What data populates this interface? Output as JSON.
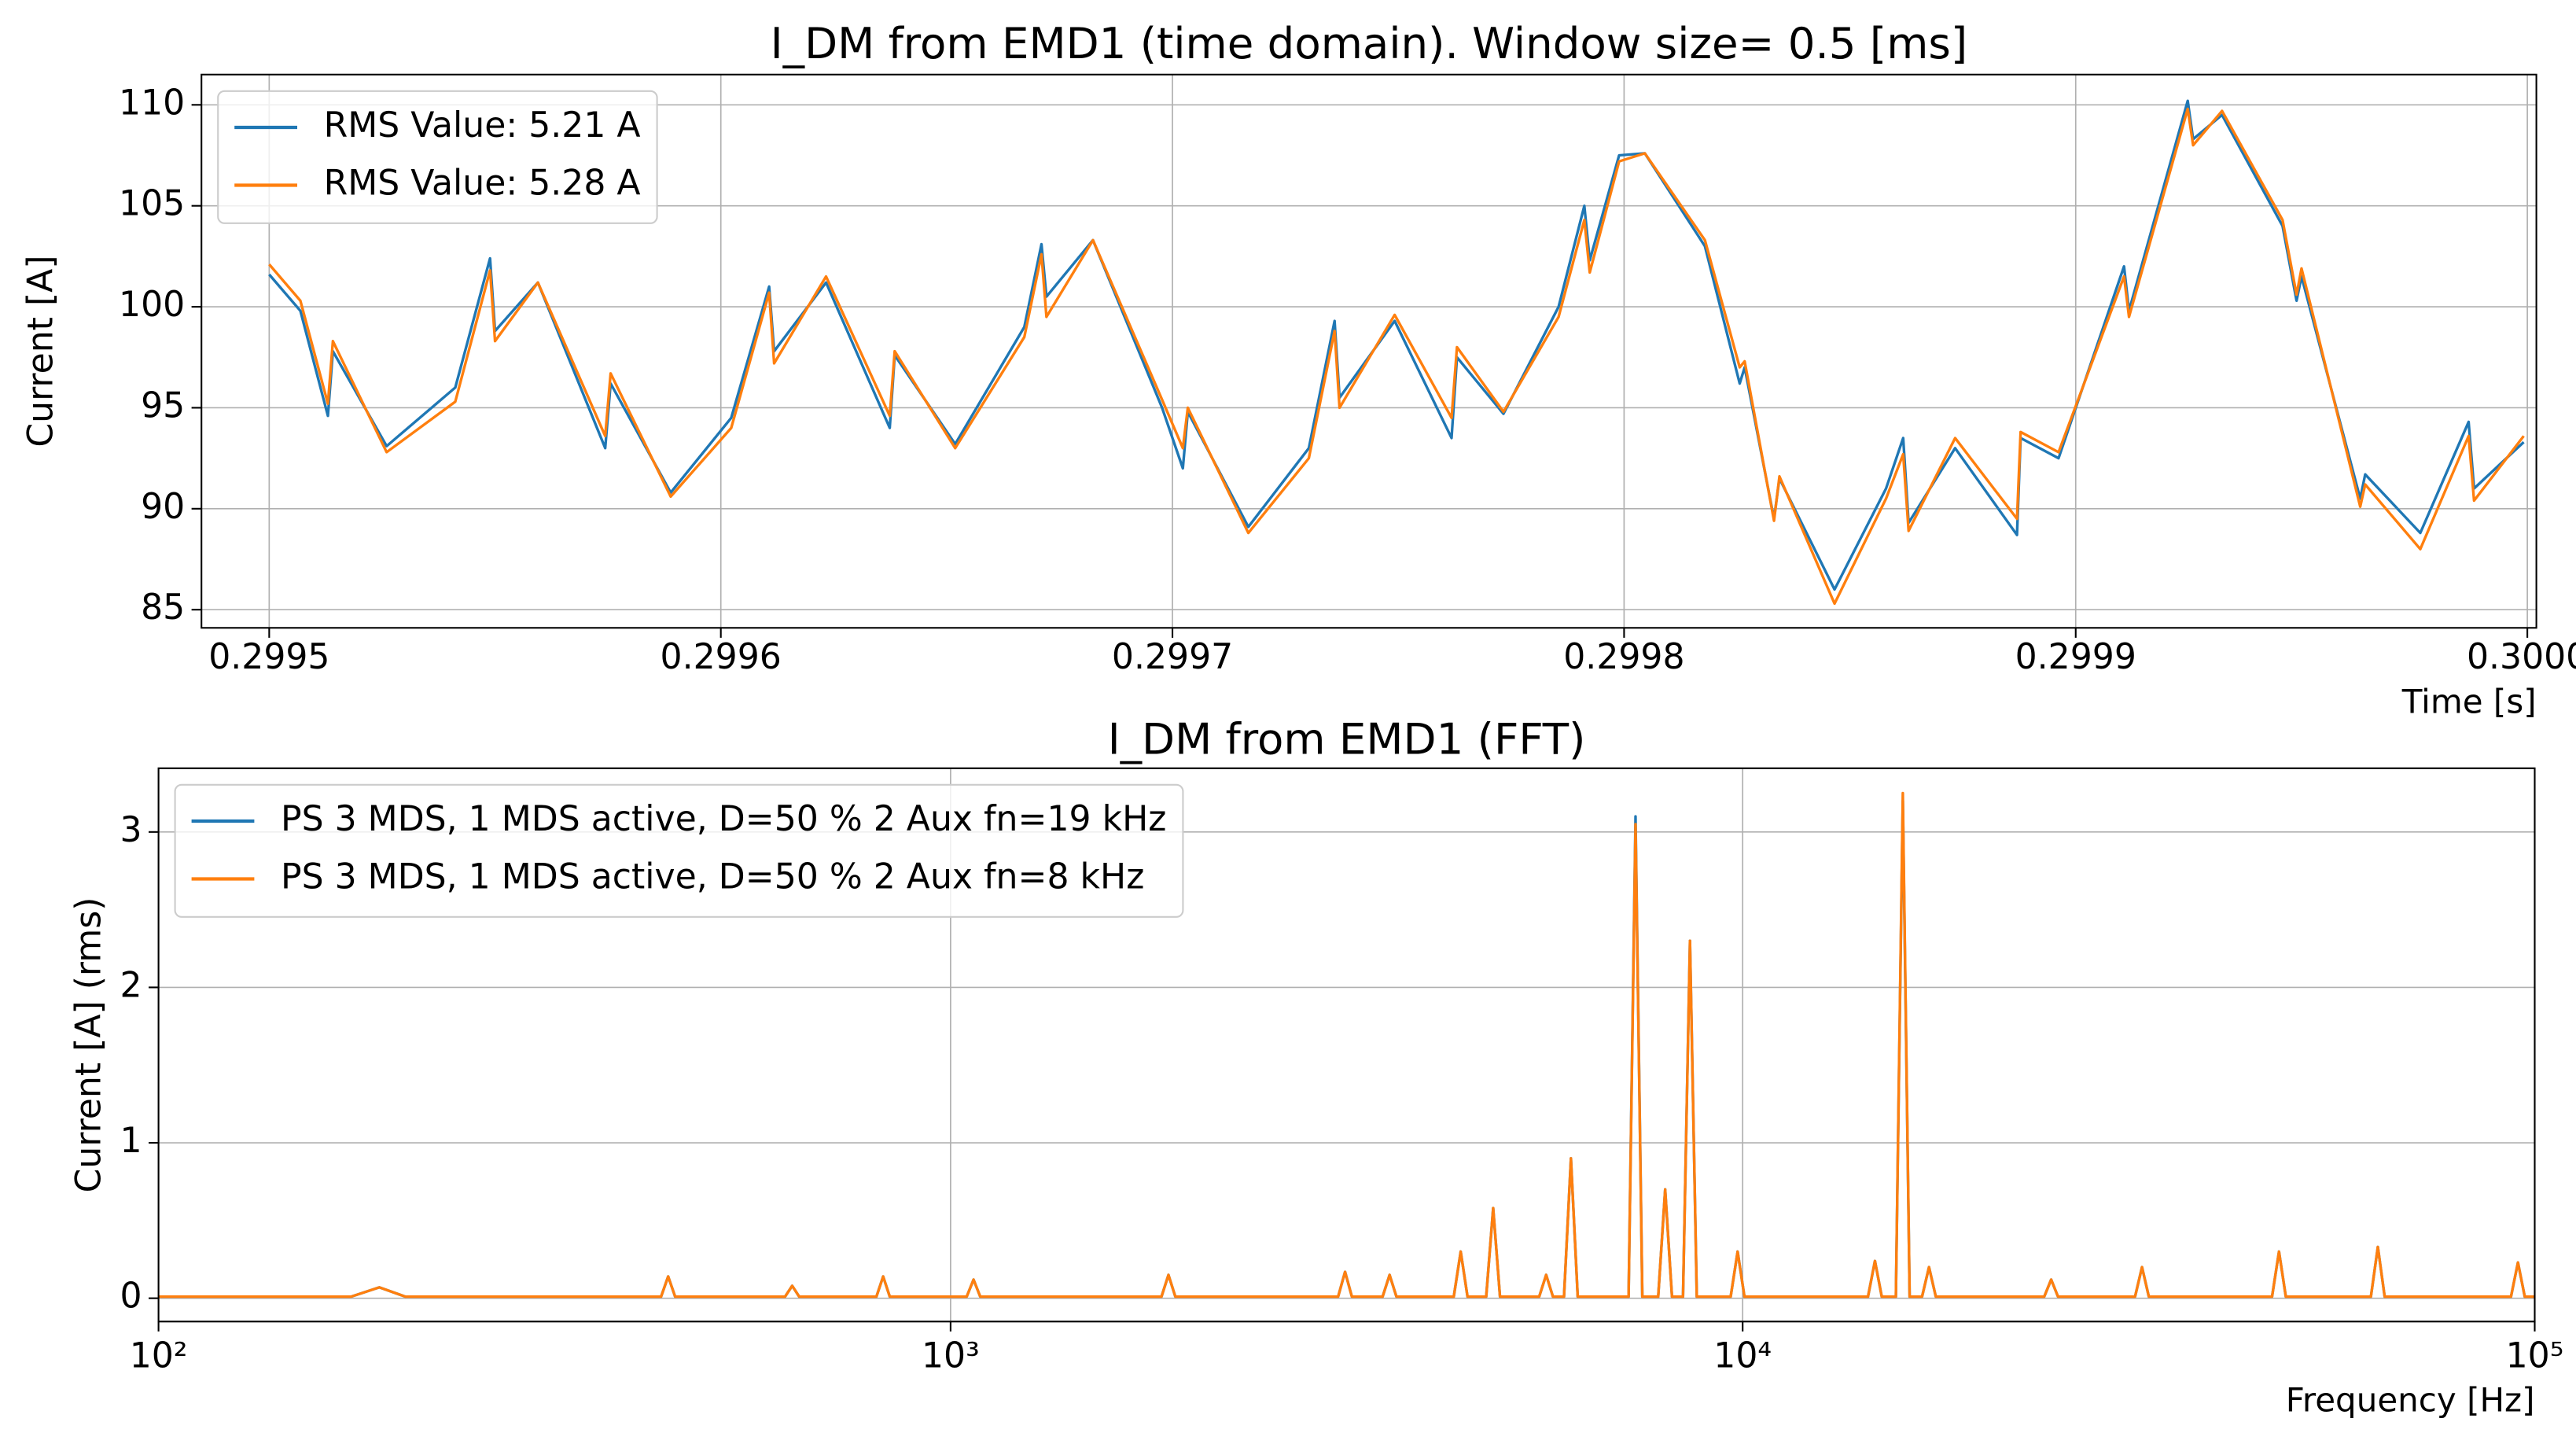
{
  "chart_data": [
    {
      "type": "line",
      "title": "I_DM from EMD1 (time domain). Window size= 0.5 [ms]",
      "xlabel": "Time [s]",
      "ylabel": "Current [A]",
      "grid": true,
      "legend": "upper left",
      "log_x": false,
      "x": [
        0.2995,
        0.2995069,
        0.299513,
        0.2995141,
        0.299526,
        0.2995412,
        0.2995489,
        0.29955,
        0.2995595,
        0.2995744,
        0.2995756,
        0.2995889,
        0.2996023,
        0.2996107,
        0.2996118,
        0.2996233,
        0.2996374,
        0.2996385,
        0.2996519,
        0.2996672,
        0.299671,
        0.2996721,
        0.2996824,
        0.2996977,
        0.2997023,
        0.2997034,
        0.2997168,
        0.2997302,
        0.2997359,
        0.299737,
        0.2997492,
        0.2997618,
        0.299763,
        0.2997733,
        0.2997855,
        0.2997912,
        0.2997924,
        0.2997989,
        0.2998046,
        0.2998179,
        0.2998256,
        0.2998267,
        0.2998332,
        0.2998344,
        0.2998466,
        0.299858,
        0.2998618,
        0.299863,
        0.2998733,
        0.299887,
        0.2998878,
        0.2998962,
        0.2999107,
        0.2999118,
        0.2999248,
        0.299926,
        0.2999324,
        0.2999458,
        0.2999489,
        0.29995,
        0.299963,
        0.2999641,
        0.2999763,
        0.299987,
        0.2999882,
        0.2999992
      ],
      "series": [
        {
          "name": "RMS Value: 5.21 A",
          "color": "#1f77b4",
          "values": [
            101.6,
            99.8,
            94.6,
            97.8,
            93.1,
            96,
            102.4,
            98.8,
            101.2,
            93,
            96.2,
            90.8,
            94.5,
            101,
            97.8,
            101.2,
            94,
            97.6,
            93.2,
            99,
            103.1,
            100.5,
            103.3,
            95,
            92,
            94.8,
            89.1,
            93,
            99.3,
            95.5,
            99.3,
            93.5,
            97.5,
            94.7,
            100,
            105,
            102.3,
            107.5,
            107.6,
            103,
            96.2,
            97,
            89.5,
            91.5,
            86,
            91,
            93.5,
            89.3,
            93,
            88.7,
            93.5,
            92.5,
            102,
            99.8,
            110.2,
            108.3,
            109.5,
            104,
            100.3,
            101.5,
            90.5,
            91.7,
            88.8,
            94.3,
            91,
            93.3
          ]
        },
        {
          "name": "RMS Value: 5.28 A",
          "color": "#ff7f0e",
          "values": [
            102.1,
            100.3,
            95.2,
            98.3,
            92.8,
            95.3,
            101.8,
            98.3,
            101.2,
            93.6,
            96.7,
            90.6,
            94,
            100.7,
            97.2,
            101.5,
            94.6,
            97.8,
            93,
            98.5,
            102.6,
            99.5,
            103.3,
            95.4,
            93,
            95,
            88.8,
            92.5,
            98.8,
            95,
            99.6,
            94.5,
            98,
            94.8,
            99.5,
            104.3,
            101.7,
            107.2,
            107.6,
            103.3,
            97,
            97.3,
            89.4,
            91.6,
            85.3,
            90.5,
            92.7,
            88.9,
            93.5,
            89.5,
            93.8,
            92.8,
            101.5,
            99.5,
            109.8,
            108,
            109.7,
            104.3,
            100.6,
            101.9,
            90.1,
            91.2,
            88,
            93.6,
            90.4,
            93.6
          ]
        }
      ],
      "xlim": [
        0.299485,
        0.300002
      ],
      "ylim": [
        84.1,
        111.5
      ],
      "xticks": [
        0.2995,
        0.2996,
        0.2997,
        0.2998,
        0.2999,
        {
          "value": 0.3,
          "label": "0.3000"
        }
      ],
      "yticks": [
        85,
        90,
        95,
        100,
        105,
        110
      ]
    },
    {
      "type": "line",
      "title": "I_DM from EMD1 (FFT)",
      "xlabel": "Frequency [Hz]",
      "ylabel": "Current [A] (rms)",
      "grid": true,
      "legend": "upper left",
      "log_x": true,
      "x": [
        100,
        175,
        190,
        205,
        431,
        440,
        449,
        618,
        631,
        644,
        806,
        822,
        838,
        1048,
        1069,
        1090,
        1846,
        1884,
        1922,
        3085,
        3148,
        3211,
        3511,
        3583,
        3655,
        4318,
        4406,
        4494,
        4745,
        4842,
        4939,
        5535,
        5648,
        5761,
        5949,
        6070,
        6191,
        7178,
        7324,
        7470,
        7823,
        7983,
        8143,
        8408,
        8580,
        8752,
        9658,
        9855,
        10052,
        14396,
        14690,
        14984,
        15611,
        15930,
        16249,
        16846,
        17190,
        17534,
        24030,
        24520,
        25010,
        31291,
        31930,
        32569,
        46599,
        47550,
        48501,
        62112,
        63380,
        64648,
        93335,
        95240,
        97145,
        100000
      ],
      "series": [
        {
          "name": "PS 3 MDS, 1 MDS active, D=50 % 2 Aux fn=19 kHz",
          "color": "#1f77b4",
          "values": [
            0.01,
            0.01,
            0.07,
            0.01,
            0.01,
            0.14,
            0.01,
            0.01,
            0.08,
            0.01,
            0.01,
            0.14,
            0.01,
            0.01,
            0.12,
            0.01,
            0.01,
            0.15,
            0.01,
            0.01,
            0.17,
            0.01,
            0.01,
            0.15,
            0.01,
            0.01,
            0.3,
            0.01,
            0.01,
            0.58,
            0.01,
            0.01,
            0.15,
            0.01,
            0.01,
            0.9,
            0.01,
            0.01,
            3.1,
            0.01,
            0.01,
            0.7,
            0.01,
            0.01,
            2.3,
            0.01,
            0.01,
            0.3,
            0.01,
            0.01,
            0.24,
            0.01,
            0.01,
            3.2,
            0.01,
            0.01,
            0.2,
            0.01,
            0.01,
            0.12,
            0.01,
            0.01,
            0.2,
            0.01,
            0.01,
            0.3,
            0.01,
            0.01,
            0.33,
            0.01,
            0.01,
            0.23,
            0.01,
            0.01
          ]
        },
        {
          "name": "PS 3 MDS, 1 MDS active, D=50 % 2 Aux fn=8 kHz",
          "color": "#ff7f0e",
          "values": [
            0.01,
            0.01,
            0.07,
            0.01,
            0.01,
            0.14,
            0.01,
            0.01,
            0.08,
            0.01,
            0.01,
            0.14,
            0.01,
            0.01,
            0.12,
            0.01,
            0.01,
            0.15,
            0.01,
            0.01,
            0.17,
            0.01,
            0.01,
            0.15,
            0.01,
            0.01,
            0.3,
            0.01,
            0.01,
            0.58,
            0.01,
            0.01,
            0.15,
            0.01,
            0.01,
            0.9,
            0.01,
            0.01,
            3.05,
            0.01,
            0.01,
            0.7,
            0.01,
            0.01,
            2.3,
            0.01,
            0.01,
            0.3,
            0.01,
            0.01,
            0.24,
            0.01,
            0.01,
            3.25,
            0.01,
            0.01,
            0.2,
            0.01,
            0.01,
            0.12,
            0.01,
            0.01,
            0.2,
            0.01,
            0.01,
            0.3,
            0.01,
            0.01,
            0.33,
            0.01,
            0.01,
            0.23,
            0.01,
            0.01
          ]
        }
      ],
      "xlim": [
        100,
        100000
      ],
      "ylim": [
        -0.15,
        3.41
      ],
      "xticks": [
        {
          "value": 100,
          "label": "10²"
        },
        {
          "value": 1000,
          "label": "10³"
        },
        {
          "value": 10000,
          "label": "10⁴"
        },
        {
          "value": 100000,
          "label": "10⁵"
        }
      ],
      "yticks": [
        0,
        1,
        2,
        3
      ]
    }
  ]
}
